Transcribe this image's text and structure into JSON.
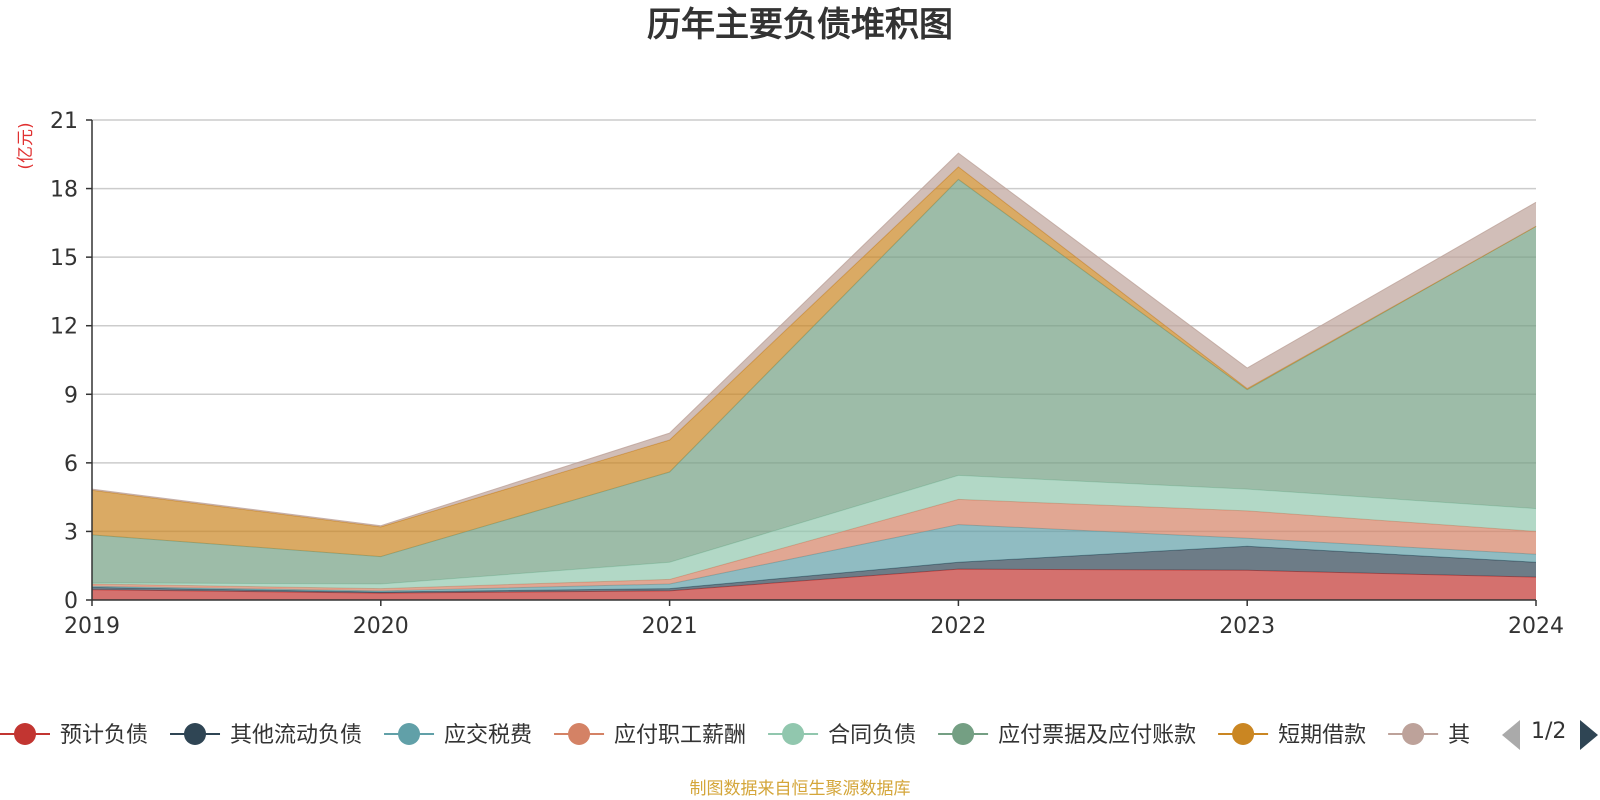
{
  "chart_data": {
    "type": "area",
    "stacked": true,
    "title": "历年主要负债堆积图",
    "ylabel": "(亿元)",
    "xlabel": "",
    "x": [
      "2019",
      "2020",
      "2021",
      "2022",
      "2023",
      "2024"
    ],
    "ylim": [
      0,
      21
    ],
    "yticks": [
      0,
      3,
      6,
      9,
      12,
      15,
      18,
      21
    ],
    "grid": true,
    "legend_position": "bottom",
    "legend_page": "1/2",
    "series": [
      {
        "name": "预计负债",
        "color": "#c23531",
        "values": [
          0.45,
          0.3,
          0.4,
          1.35,
          1.3,
          1.0
        ]
      },
      {
        "name": "其他流动负债",
        "color": "#2f4554",
        "values": [
          0.1,
          0.05,
          0.1,
          0.3,
          1.05,
          0.65
        ]
      },
      {
        "name": "应交税费",
        "color": "#61a0a8",
        "values": [
          0.05,
          0.05,
          0.2,
          1.65,
          0.35,
          0.35
        ]
      },
      {
        "name": "应付职工薪酬",
        "color": "#d48265",
        "values": [
          0.1,
          0.1,
          0.2,
          1.1,
          1.2,
          1.0
        ]
      },
      {
        "name": "合同负债",
        "color": "#91c7ae",
        "values": [
          0.05,
          0.2,
          0.75,
          1.05,
          0.95,
          1.0
        ]
      },
      {
        "name": "应付票据及应付账款",
        "color": "#749f83",
        "values": [
          2.1,
          1.2,
          3.95,
          12.95,
          4.35,
          12.35
        ]
      },
      {
        "name": "短期借款",
        "color": "#ca8622",
        "values": [
          1.95,
          1.3,
          1.4,
          0.55,
          0.05,
          0.0
        ]
      },
      {
        "name": "其他",
        "color": "#bda29a",
        "values": [
          0.05,
          0.05,
          0.3,
          0.6,
          0.9,
          1.05
        ]
      }
    ],
    "footnote": "制图数据来自恒生聚源数据库"
  }
}
